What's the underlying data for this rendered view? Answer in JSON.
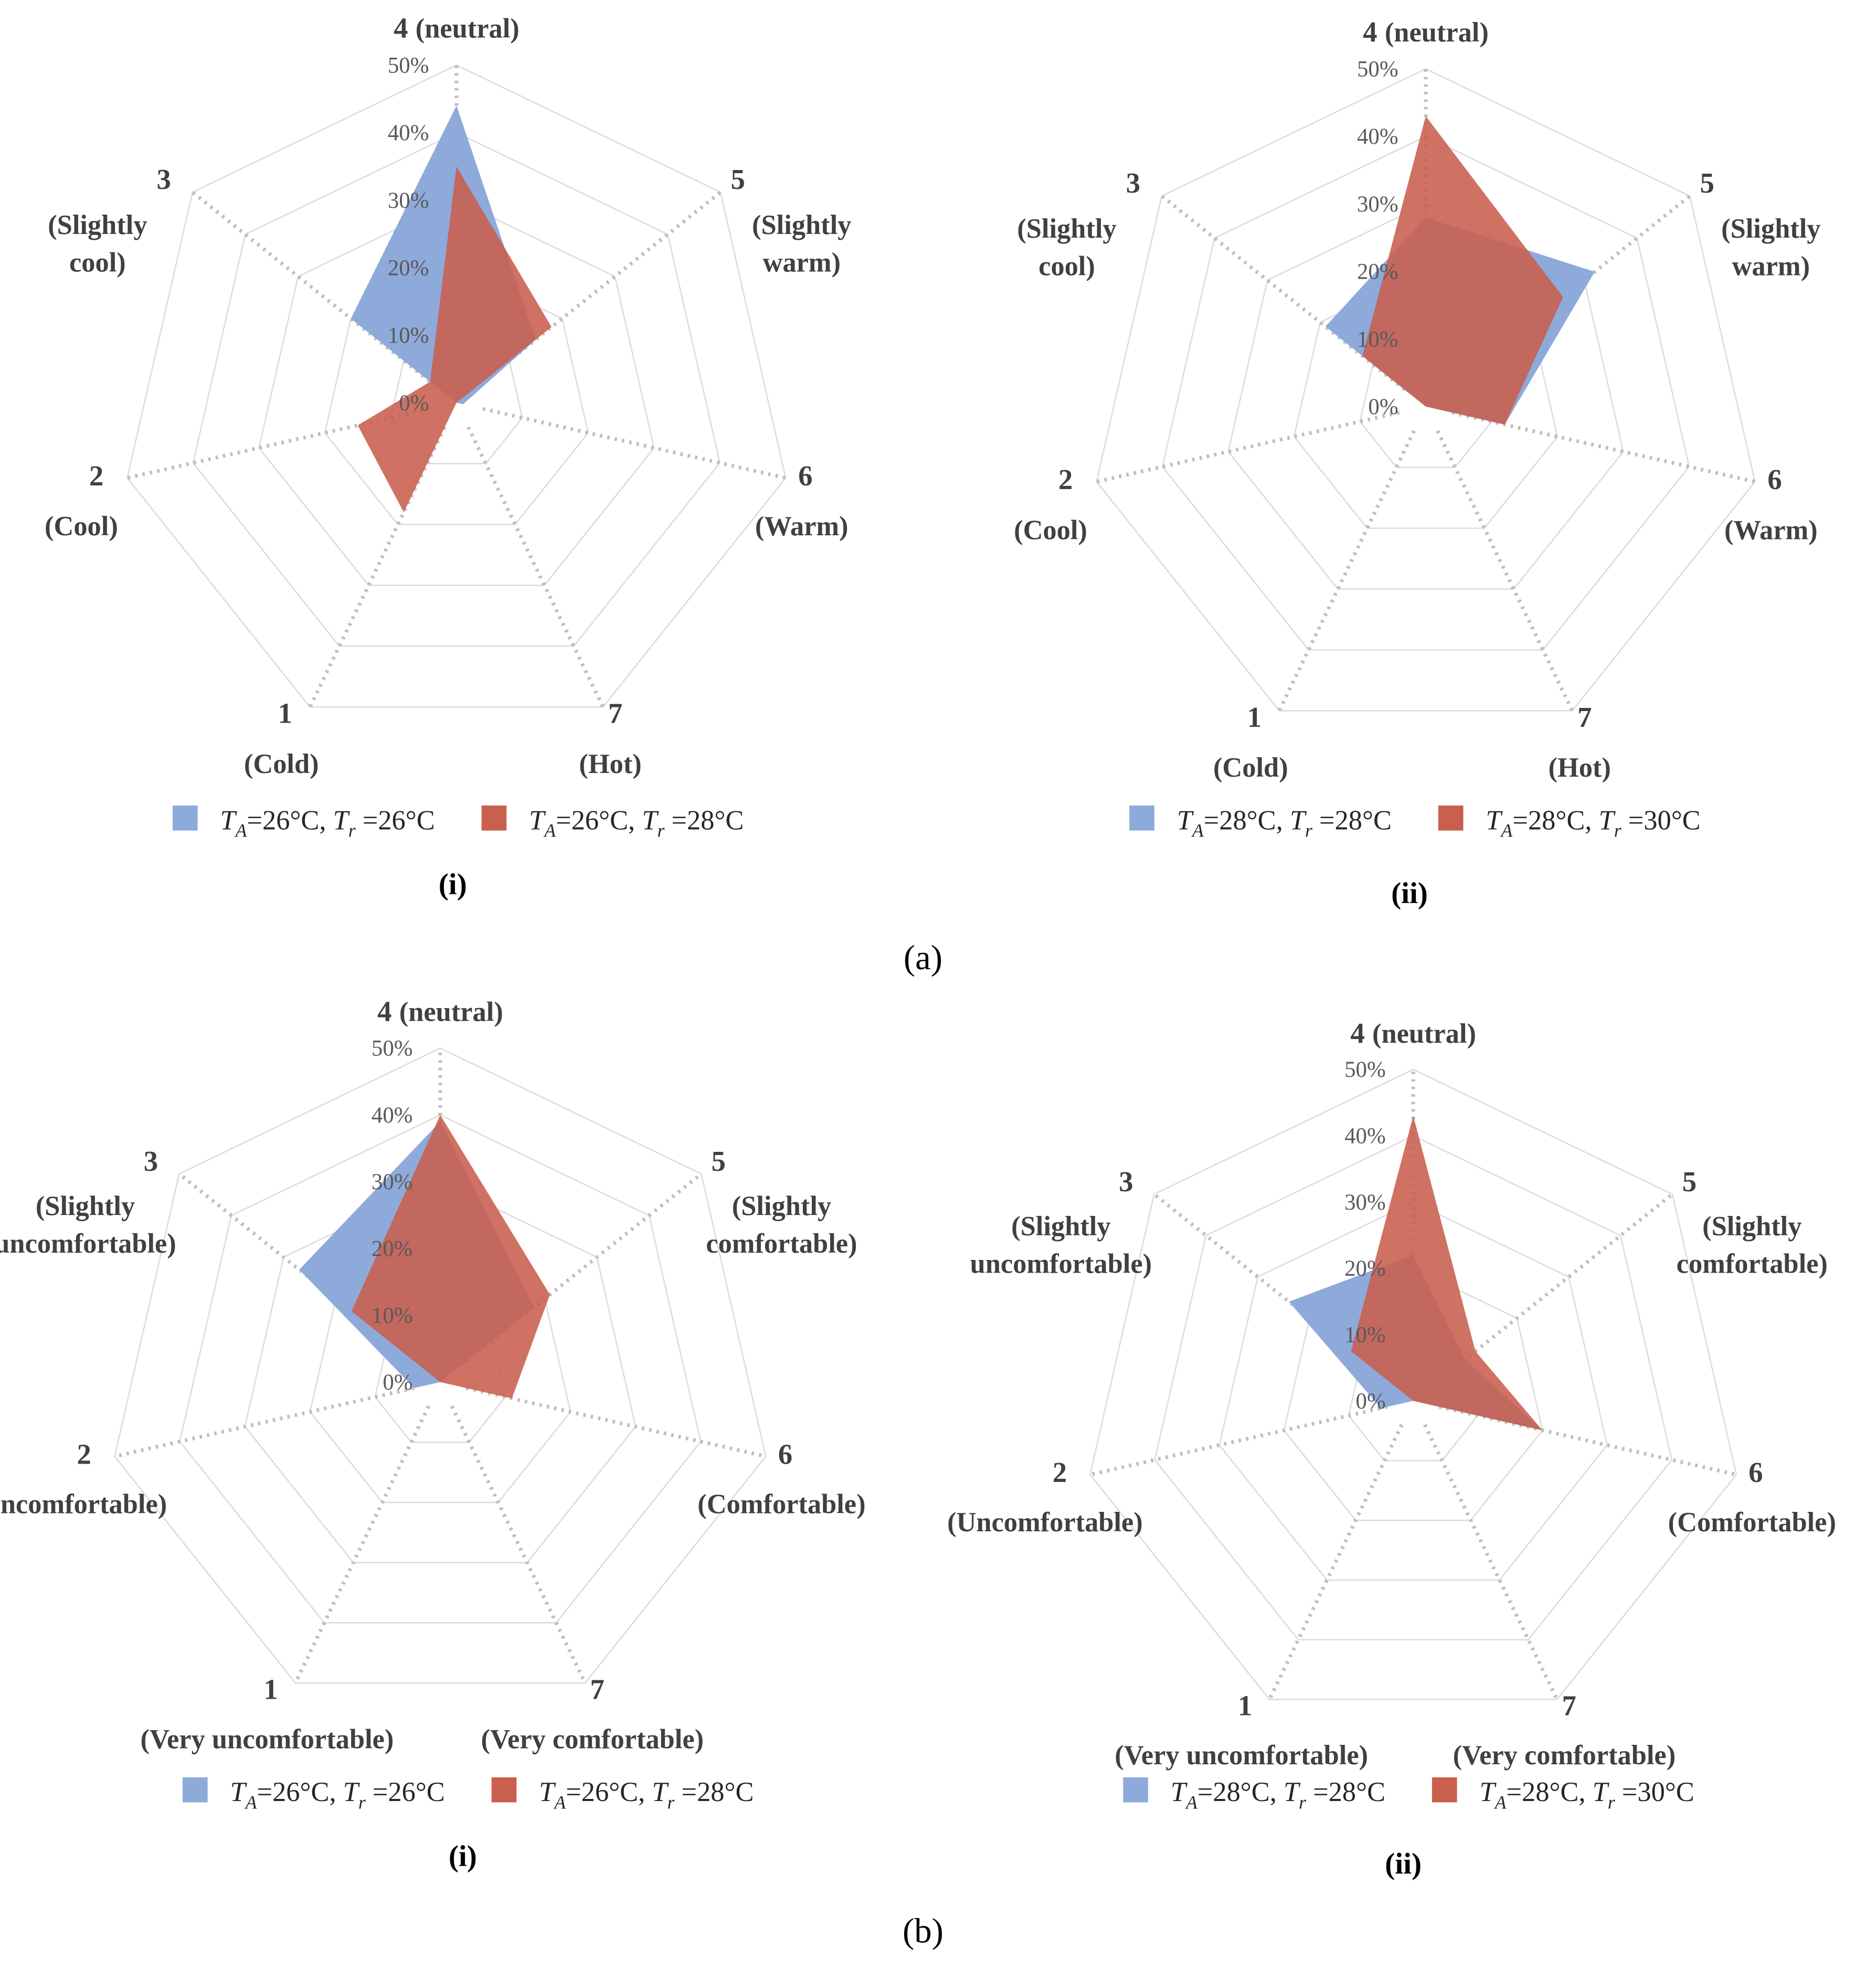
{
  "figure_labels": {
    "a": "(a)",
    "b": "(b)"
  },
  "colors": {
    "blue": "#8eaadb",
    "red": "#c95f4d",
    "grid": "#d9d9d9",
    "axis": "#bfbfbf"
  },
  "chart_data": [
    {
      "type": "radar",
      "panel": "(i)",
      "group": "a",
      "rlim": [
        0,
        50
      ],
      "ticks": [
        "0%",
        "10%",
        "20%",
        "30%",
        "40%",
        "50%"
      ],
      "categories": [
        {
          "num": "1",
          "desc": [
            "(Cold)"
          ]
        },
        {
          "num": "2",
          "desc": [
            "(Cool)"
          ]
        },
        {
          "num": "3",
          "desc": [
            "(Slightly",
            "cool)"
          ]
        },
        {
          "num": "4",
          "desc": [
            "(neutral)"
          ]
        },
        {
          "num": "5",
          "desc": [
            "(Slightly",
            "warm)"
          ]
        },
        {
          "num": "6",
          "desc": [
            "(Warm)"
          ]
        },
        {
          "num": "7",
          "desc": [
            "(Hot)"
          ]
        }
      ],
      "series": [
        {
          "name": "TA=26°C, Tr =26°C",
          "color": "#8eaadb",
          "values": [
            0,
            0,
            20,
            44,
            15,
            1,
            0
          ],
          "legend": {
            "t1": "T",
            "s1": "A",
            "v1": "=26°C, ",
            "t2": "T",
            "s2": "r",
            "v2": " =26°C"
          }
        },
        {
          "name": "TA=26°C, Tr =28°C",
          "color": "#c95f4d",
          "values": [
            18,
            15,
            5,
            35,
            18,
            0,
            0
          ],
          "legend": {
            "t1": "T",
            "s1": "A",
            "v1": "=26°C, ",
            "t2": "T",
            "s2": "r",
            "v2": " =28°C"
          }
        }
      ]
    },
    {
      "type": "radar",
      "panel": "(ii)",
      "group": "a",
      "rlim": [
        0,
        50
      ],
      "ticks": [
        "0%",
        "10%",
        "20%",
        "30%",
        "40%",
        "50%"
      ],
      "categories": [
        {
          "num": "1",
          "desc": [
            "(Cold)"
          ]
        },
        {
          "num": "2",
          "desc": [
            "(Cool)"
          ]
        },
        {
          "num": "3",
          "desc": [
            "(Slightly",
            "cool)"
          ]
        },
        {
          "num": "4",
          "desc": [
            "(neutral)"
          ]
        },
        {
          "num": "5",
          "desc": [
            "(Slightly",
            "warm)"
          ]
        },
        {
          "num": "6",
          "desc": [
            "(Warm)"
          ]
        },
        {
          "num": "7",
          "desc": [
            "(Hot)"
          ]
        }
      ],
      "series": [
        {
          "name": "TA=28°C, Tr =28°C",
          "color": "#8eaadb",
          "values": [
            0,
            0,
            19,
            28,
            32,
            12,
            0
          ],
          "legend": {
            "t1": "T",
            "s1": "A",
            "v1": "=28°C, ",
            "t2": "T",
            "s2": "r",
            "v2": " =28°C"
          }
        },
        {
          "name": "TA=28°C, Tr =30°C",
          "color": "#c95f4d",
          "values": [
            0,
            0,
            12,
            43,
            26,
            12,
            0
          ],
          "legend": {
            "t1": "T",
            "s1": "A",
            "v1": "=28°C, ",
            "t2": "T",
            "s2": "r",
            "v2": " =30°C"
          }
        }
      ]
    },
    {
      "type": "radar",
      "panel": "(i)",
      "group": "b",
      "rlim": [
        0,
        50
      ],
      "ticks": [
        "0%",
        "10%",
        "20%",
        "30%",
        "40%",
        "50%"
      ],
      "categories": [
        {
          "num": "1",
          "desc": [
            "(Very uncomfortable)"
          ]
        },
        {
          "num": "2",
          "desc": [
            "(Uncomfortable)"
          ]
        },
        {
          "num": "3",
          "desc": [
            "(Slightly",
            "uncomfortable)"
          ]
        },
        {
          "num": "4",
          "desc": [
            "(neutral)"
          ]
        },
        {
          "num": "5",
          "desc": [
            "(Slightly",
            "comfortable)"
          ]
        },
        {
          "num": "6",
          "desc": [
            "(Comfortable)"
          ]
        },
        {
          "num": "7",
          "desc": [
            "(Very comfortable)"
          ]
        }
      ],
      "series": [
        {
          "name": "TA=26°C, Tr =26°C",
          "color": "#8eaadb",
          "values": [
            0,
            4,
            27,
            39,
            18,
            0,
            0
          ],
          "legend": {
            "t1": "T",
            "s1": "A",
            "v1": "=26°C, ",
            "t2": "T",
            "s2": "r",
            "v2": " =26°C"
          }
        },
        {
          "name": "TA=26°C, Tr =28°C",
          "color": "#c95f4d",
          "values": [
            0,
            0,
            17,
            40,
            21,
            11,
            0
          ],
          "legend": {
            "t1": "T",
            "s1": "A",
            "v1": "=26°C, ",
            "t2": "T",
            "s2": "r",
            "v2": " =28°C"
          }
        }
      ]
    },
    {
      "type": "radar",
      "panel": "(ii)",
      "group": "b",
      "rlim": [
        0,
        50
      ],
      "ticks": [
        "0%",
        "10%",
        "20%",
        "30%",
        "40%",
        "50%"
      ],
      "categories": [
        {
          "num": "1",
          "desc": [
            "(Very uncomfortable)"
          ]
        },
        {
          "num": "2",
          "desc": [
            "(Uncomfortable)"
          ]
        },
        {
          "num": "3",
          "desc": [
            "(Slightly",
            "uncomfortable)"
          ]
        },
        {
          "num": "4",
          "desc": [
            "(neutral)"
          ]
        },
        {
          "num": "5",
          "desc": [
            "(Slightly",
            "comfortable)"
          ]
        },
        {
          "num": "6",
          "desc": [
            "(Comfortable)"
          ]
        },
        {
          "num": "7",
          "desc": [
            "(Very comfortable)"
          ]
        }
      ],
      "series": [
        {
          "name": "TA=28°C, Tr =28°C",
          "color": "#8eaadb",
          "values": [
            0,
            5,
            24,
            22,
            10,
            20,
            0
          ],
          "legend": {
            "t1": "T",
            "s1": "A",
            "v1": "=28°C, ",
            "t2": "T",
            "s2": "r",
            "v2": " =28°C"
          }
        },
        {
          "name": "TA=28°C, Tr =30°C",
          "color": "#c95f4d",
          "values": [
            0,
            0,
            12,
            43,
            12,
            20,
            0
          ],
          "legend": {
            "t1": "T",
            "s1": "A",
            "v1": "=28°C, ",
            "t2": "T",
            "s2": "r",
            "v2": " =30°C"
          }
        }
      ]
    }
  ]
}
